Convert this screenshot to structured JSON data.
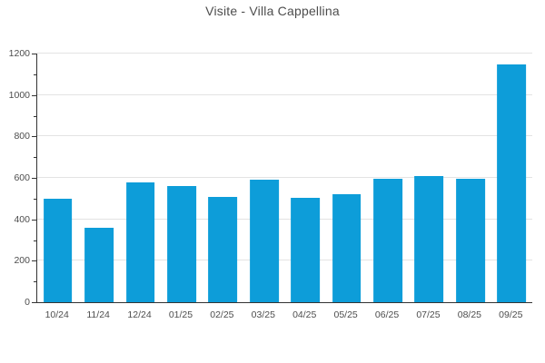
{
  "chart_data": {
    "type": "bar",
    "title": "Visite - Villa Cappellina",
    "categories": [
      "10/24",
      "11/24",
      "12/24",
      "01/25",
      "02/25",
      "03/25",
      "04/25",
      "05/25",
      "06/25",
      "07/25",
      "08/25",
      "09/25"
    ],
    "values": [
      500,
      360,
      580,
      562,
      510,
      590,
      502,
      523,
      596,
      607,
      597,
      1148
    ],
    "xlabel": "",
    "ylabel": "",
    "ylim": [
      0,
      1200
    ],
    "yticks": [
      0,
      200,
      400,
      600,
      800,
      1000,
      1200
    ],
    "minor_ytick_step": 100,
    "grid": true,
    "legend_position": "none",
    "bar_color": "#0d9dd9",
    "grid_color": "#e3e3e3",
    "axis_color": "#333333",
    "text_color": "#4d4d4d",
    "background_color": "#ffffff"
  }
}
